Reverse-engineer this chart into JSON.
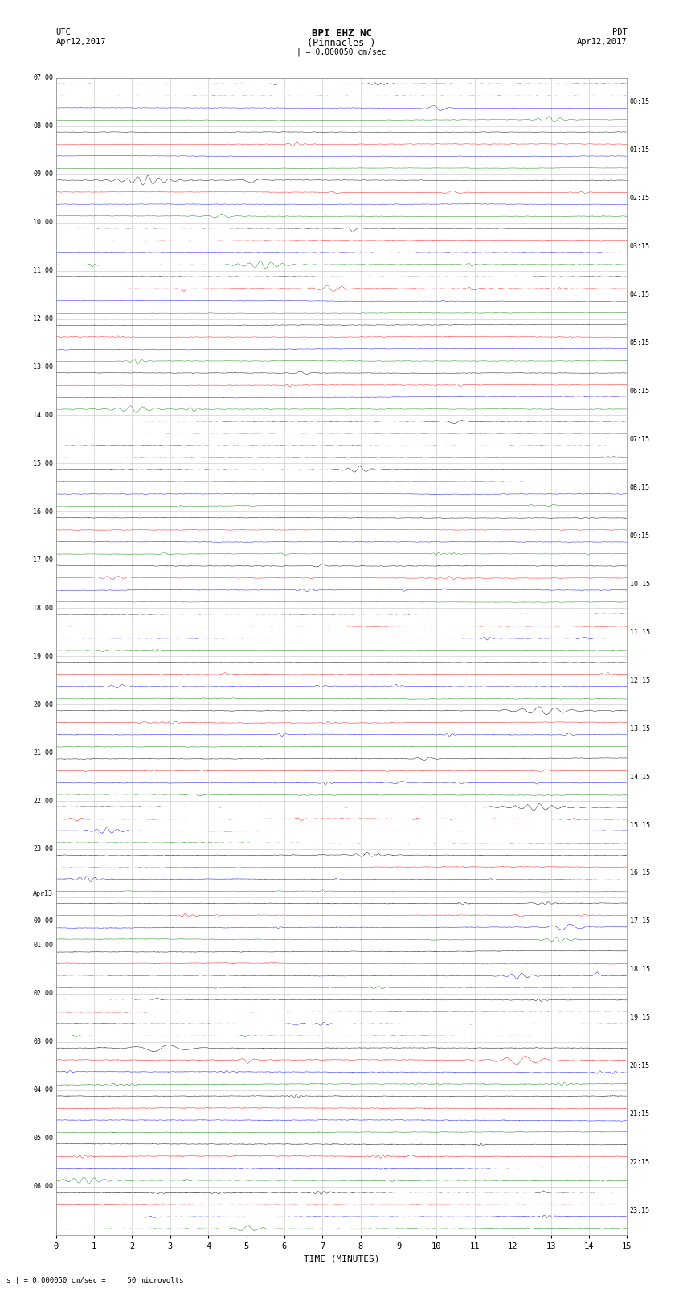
{
  "title_line1": "BPI EHZ NC",
  "title_line2": "(Pinnacles )",
  "scale_text": "| = 0.000050 cm/sec",
  "utc_label": "UTC",
  "utc_date": "Apr12,2017",
  "pdt_label": "PDT",
  "pdt_date": "Apr12,2017",
  "xlabel": "TIME (MINUTES)",
  "bottom_note": "s | = 0.000050 cm/sec =     50 microvolts",
  "left_times": [
    "07:00",
    "08:00",
    "09:00",
    "10:00",
    "11:00",
    "12:00",
    "13:00",
    "14:00",
    "15:00",
    "16:00",
    "17:00",
    "18:00",
    "19:00",
    "20:00",
    "21:00",
    "22:00",
    "23:00",
    "Apr13\n00:00",
    "01:00",
    "02:00",
    "03:00",
    "04:00",
    "05:00",
    "06:00"
  ],
  "right_times": [
    "00:15",
    "01:15",
    "02:15",
    "03:15",
    "04:15",
    "05:15",
    "06:15",
    "07:15",
    "08:15",
    "09:15",
    "10:15",
    "11:15",
    "12:15",
    "13:15",
    "14:15",
    "15:15",
    "16:15",
    "17:15",
    "18:15",
    "19:15",
    "20:15",
    "21:15",
    "22:15",
    "23:15"
  ],
  "num_rows": 24,
  "traces_per_row": 4,
  "trace_colors": [
    "black",
    "red",
    "blue",
    "green"
  ],
  "bg_color": "#ffffff",
  "plot_bg": "#ffffff",
  "xticks": [
    0,
    1,
    2,
    3,
    4,
    5,
    6,
    7,
    8,
    9,
    10,
    11,
    12,
    13,
    14,
    15
  ],
  "xlim": [
    0,
    15
  ],
  "minutes": 15,
  "seed": 12345
}
